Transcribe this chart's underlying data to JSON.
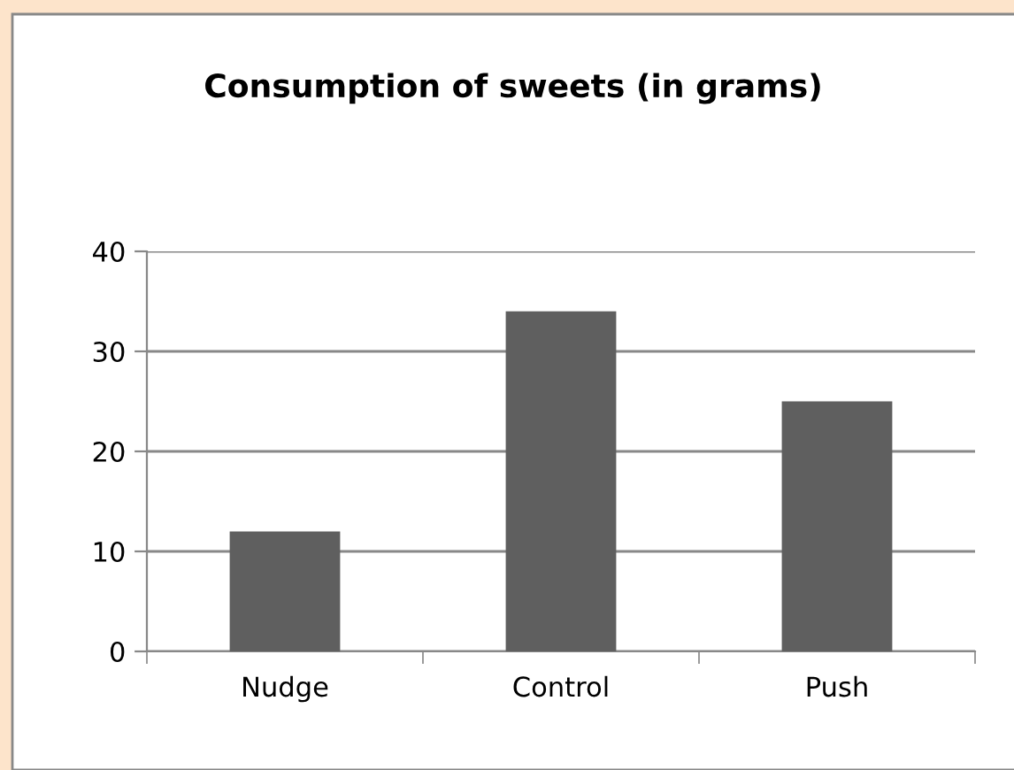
{
  "chart_data": {
    "type": "bar",
    "title": "Consumption of sweets (in grams)",
    "categories": [
      "Nudge",
      "Control",
      "Push"
    ],
    "values": [
      12,
      34,
      25
    ],
    "color": "#5f5f5f",
    "ylim": [
      0,
      40
    ],
    "yticks": [
      0,
      10,
      20,
      30,
      40
    ],
    "grid": "y",
    "legend": false
  }
}
